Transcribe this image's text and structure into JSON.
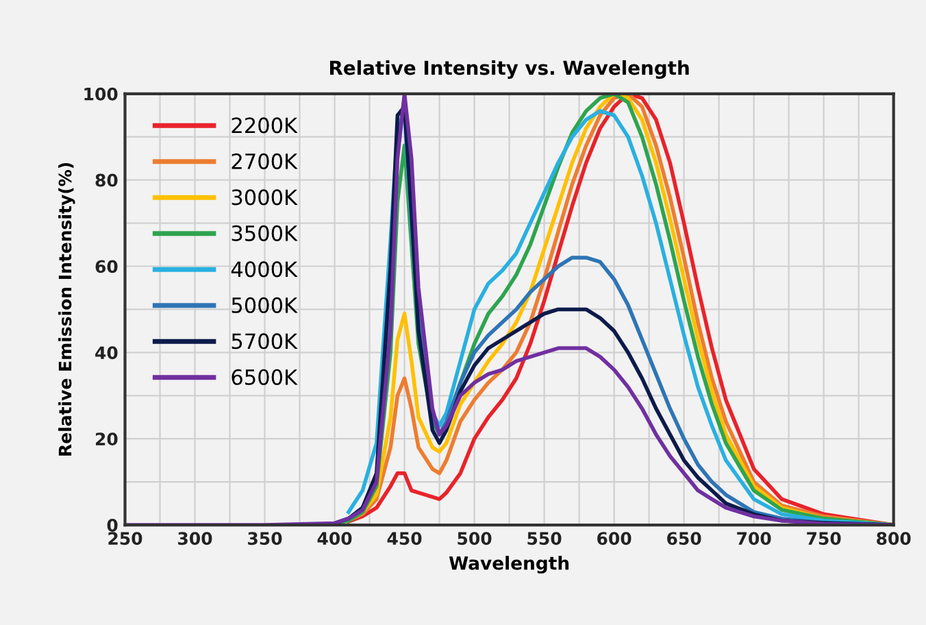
{
  "chart_data": {
    "type": "line",
    "title": "Relative Intensity vs. Wavelength",
    "xlabel": "Wavelength",
    "ylabel": "Relative Emission Intensity(%)",
    "x": [
      250,
      350,
      400,
      410,
      420,
      430,
      440,
      445,
      450,
      455,
      460,
      470,
      475,
      480,
      490,
      500,
      510,
      520,
      530,
      540,
      550,
      560,
      570,
      580,
      590,
      600,
      610,
      620,
      630,
      640,
      650,
      660,
      670,
      680,
      700,
      720,
      750,
      800
    ],
    "series": [
      {
        "name": "2200K",
        "color": "#e8232a",
        "values": [
          null,
          null,
          null,
          0.8,
          2,
          4,
          9,
          12,
          12,
          8,
          7.5,
          6.5,
          6,
          7.5,
          12,
          20,
          25,
          29,
          34,
          42,
          52,
          63,
          74,
          84,
          92,
          97,
          100,
          99,
          94,
          84,
          70,
          55,
          41,
          29,
          13,
          6,
          2.5,
          0
        ]
      },
      {
        "name": "2700K",
        "color": "#ed7d31",
        "values": [
          null,
          null,
          null,
          1,
          2.5,
          6,
          18,
          30,
          34,
          27,
          18,
          13,
          12,
          15,
          24,
          29,
          33,
          36,
          40,
          47,
          57,
          68,
          79,
          88,
          95,
          99,
          100,
          97,
          88,
          76,
          62,
          47,
          34,
          24,
          10,
          4.5,
          2,
          0
        ]
      },
      {
        "name": "3000K",
        "color": "#ffc000",
        "values": [
          null,
          null,
          null,
          1,
          3,
          7,
          25,
          43,
          49,
          38,
          25,
          18,
          17,
          19,
          28,
          33,
          38,
          42,
          47,
          54,
          64,
          74,
          84,
          92,
          97,
          100,
          99,
          94,
          84,
          71,
          57,
          43,
          31,
          21,
          9,
          4,
          1.5,
          0
        ]
      },
      {
        "name": "3500K",
        "color": "#2ea44f",
        "values": [
          null,
          null,
          0.3,
          1,
          3,
          9,
          40,
          75,
          88,
          65,
          42,
          24,
          21,
          23,
          33,
          42,
          49,
          53,
          58,
          65,
          74,
          83,
          91,
          96,
          99,
          100,
          98,
          90,
          79,
          66,
          52,
          39,
          28,
          19,
          8,
          3.5,
          1.5,
          0
        ]
      },
      {
        "name": "4000K",
        "color": "#29b0e0",
        "values": [
          null,
          null,
          null,
          3,
          8,
          19,
          66,
          92,
          95,
          70,
          45,
          26,
          23,
          26,
          38,
          50,
          56,
          59,
          63,
          70,
          77,
          84,
          90,
          94,
          96,
          95,
          90,
          81,
          70,
          57,
          44,
          32,
          23,
          15,
          6,
          2.5,
          1,
          0
        ]
      },
      {
        "name": "5000K",
        "color": "#2e75b6",
        "values": [
          null,
          null,
          0.4,
          1.5,
          4,
          11,
          50,
          88,
          99,
          75,
          48,
          25,
          21,
          24,
          33,
          40,
          44,
          47,
          50,
          54,
          57,
          60,
          62,
          62,
          61,
          57,
          51,
          43,
          35,
          27,
          20,
          14,
          10,
          7,
          3,
          1.5,
          0.5,
          0
        ]
      },
      {
        "name": "5700K",
        "color": "#0d1b4b",
        "values": [
          null,
          null,
          0.4,
          1.5,
          4,
          12,
          60,
          95,
          97,
          72,
          45,
          22,
          19,
          22,
          31,
          37,
          41,
          43,
          45,
          47,
          49,
          50,
          50,
          50,
          48,
          45,
          40,
          34,
          27,
          21,
          15,
          11,
          8,
          5,
          2.5,
          1,
          0.5,
          0
        ]
      },
      {
        "name": "6500K",
        "color": "#7030a0",
        "values": [
          0,
          0,
          0.4,
          1.5,
          3.5,
          10,
          45,
          85,
          100,
          85,
          55,
          27,
          21,
          23,
          30,
          33,
          35,
          36,
          38,
          39,
          40,
          41,
          41,
          41,
          39,
          36,
          32,
          27,
          21,
          16,
          12,
          8,
          6,
          4,
          2,
          1,
          0.3,
          0
        ]
      }
    ],
    "xlim": [
      250,
      800
    ],
    "xticks": [
      250,
      {
        "value": 275,
        "label": null
      },
      300,
      {
        "value": 325,
        "label": null
      },
      350,
      {
        "value": 375,
        "label": null
      },
      400,
      {
        "value": 425,
        "label": null
      },
      450,
      {
        "value": 475,
        "label": null
      },
      500,
      {
        "value": 525,
        "label": null
      },
      550,
      {
        "value": 575,
        "label": null
      },
      600,
      {
        "value": 625,
        "label": null
      },
      650,
      {
        "value": 675,
        "label": null
      },
      700,
      {
        "value": 725,
        "label": null
      },
      750,
      {
        "value": 775,
        "label": null
      },
      800
    ],
    "ylim": [
      0,
      100
    ],
    "yticks": [
      0,
      {
        "value": 10,
        "label": null
      },
      20,
      {
        "value": 30,
        "label": null
      },
      40,
      {
        "value": 50,
        "label": null
      },
      60,
      {
        "value": 70,
        "label": null
      },
      80,
      {
        "value": 90,
        "label": null
      },
      100
    ],
    "grid": true,
    "legend": "top left",
    "marker": "none",
    "line_style": "solid"
  }
}
